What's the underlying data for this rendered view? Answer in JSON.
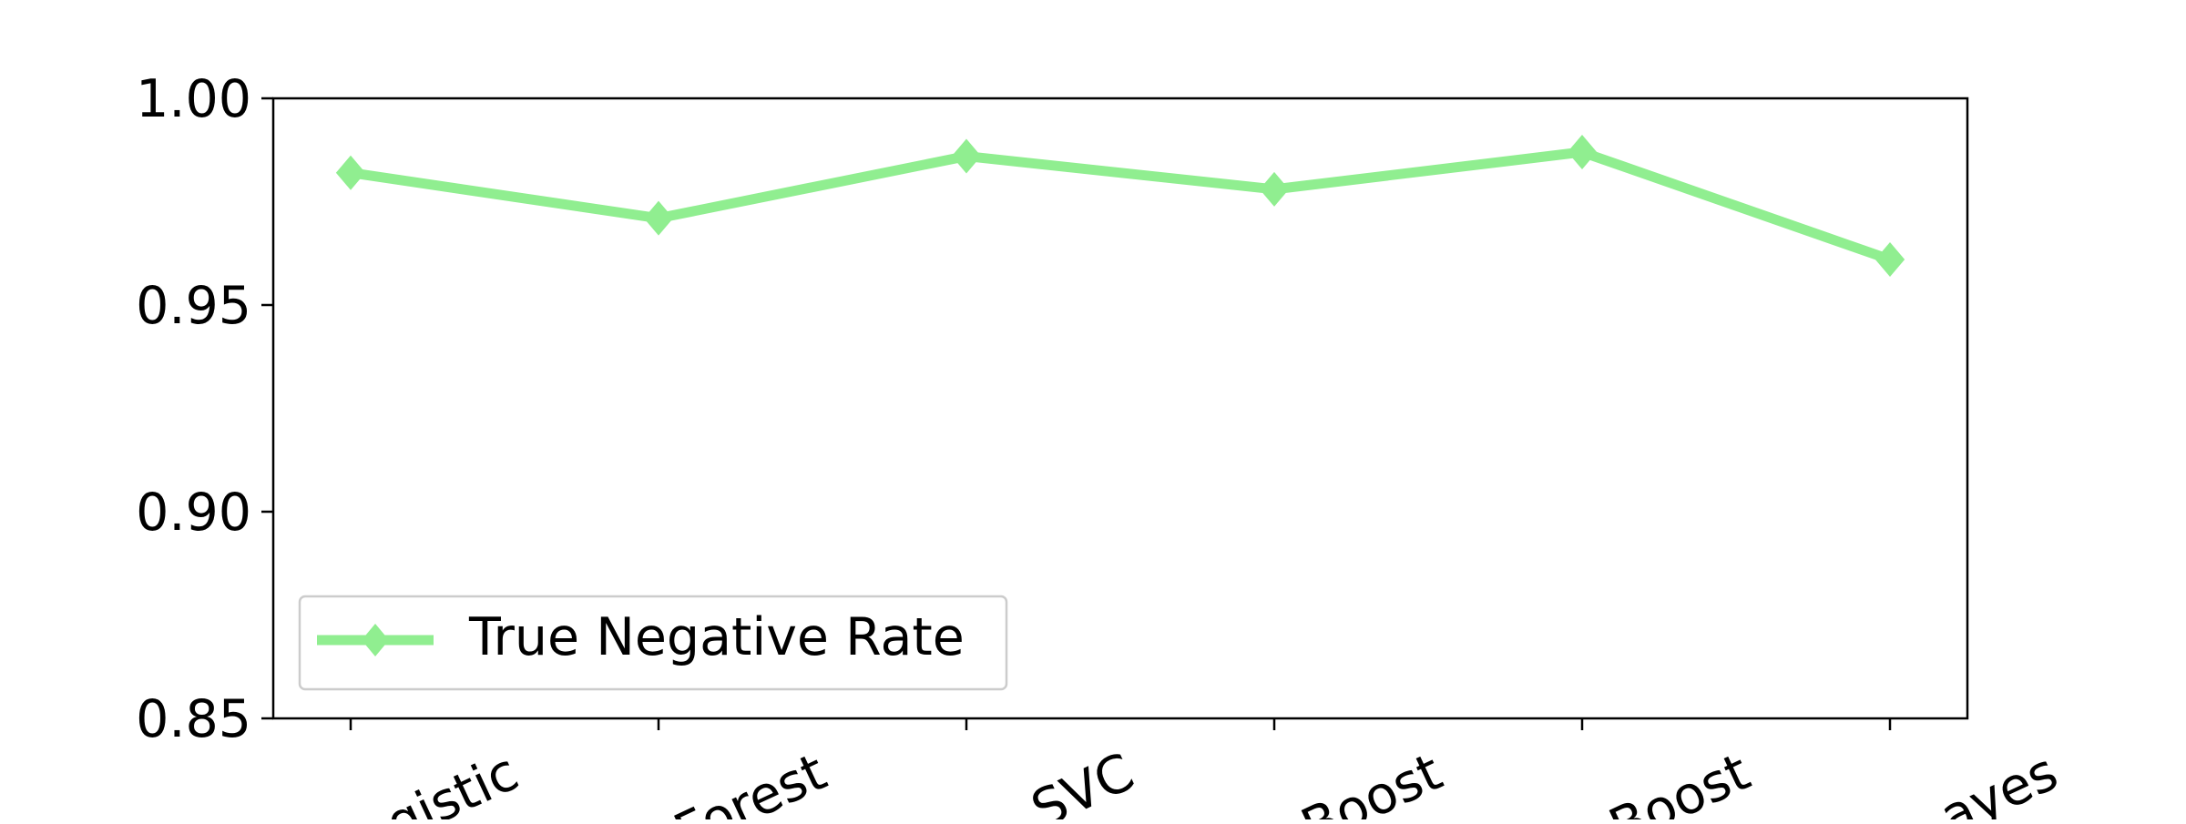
{
  "chart_data": {
    "type": "line",
    "categories": [
      "Logistic",
      "Random Forest",
      "SVC",
      "AdaBoost",
      "XGBoost",
      "Naive Bayes"
    ],
    "tick_labels_visible": [
      "gistic",
      "Forest",
      "SVC",
      "Boost",
      "Boost",
      "ayes"
    ],
    "series": [
      {
        "name": "True Negative Rate",
        "values": [
          0.982,
          0.971,
          0.986,
          0.978,
          0.987,
          0.961
        ],
        "color": "#90EE90",
        "marker": "diamond"
      }
    ],
    "ylim": [
      0.85,
      1.0
    ],
    "yticks": [
      0.85,
      0.9,
      0.95,
      1.0
    ],
    "ytick_labels": [
      "0.85",
      "0.90",
      "0.95",
      "1.00"
    ],
    "grid": false,
    "legend_position": "lower-left",
    "title": "",
    "xlabel": "",
    "ylabel": ""
  }
}
